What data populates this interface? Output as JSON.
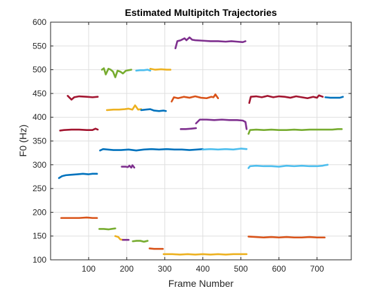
{
  "chart_data": {
    "type": "line",
    "title": "Estimated Multipitch Trajectories",
    "xlabel": "Frame Number",
    "ylabel": "F0 (Hz)",
    "xlim": [
      0,
      790
    ],
    "ylim": [
      100,
      600
    ],
    "xticks": [
      100,
      200,
      300,
      400,
      500,
      600,
      700
    ],
    "yticks": [
      100,
      150,
      200,
      250,
      300,
      350,
      400,
      450,
      500,
      550,
      600
    ],
    "grid": true,
    "legend": false,
    "series": [
      {
        "color": "#0072BD",
        "points": [
          [
            22,
            272
          ],
          [
            30,
            276
          ],
          [
            40,
            278
          ],
          [
            55,
            279
          ],
          [
            70,
            280
          ],
          [
            85,
            281
          ],
          [
            100,
            280
          ],
          [
            110,
            281
          ],
          [
            122,
            281
          ]
        ]
      },
      {
        "color": "#D95319",
        "points": [
          [
            28,
            188
          ],
          [
            50,
            188
          ],
          [
            75,
            188
          ],
          [
            95,
            189
          ],
          [
            110,
            188
          ],
          [
            122,
            188
          ]
        ]
      },
      {
        "color": "#A2142F",
        "points": [
          [
            25,
            372
          ],
          [
            35,
            373
          ],
          [
            55,
            374
          ],
          [
            75,
            374
          ],
          [
            95,
            373
          ],
          [
            110,
            373
          ],
          [
            118,
            376
          ],
          [
            124,
            374
          ]
        ]
      },
      {
        "color": "#A2142F",
        "points": [
          [
            45,
            445
          ],
          [
            55,
            437
          ],
          [
            62,
            442
          ],
          [
            75,
            444
          ],
          [
            95,
            443
          ],
          [
            110,
            442
          ],
          [
            124,
            443
          ]
        ]
      },
      {
        "color": "#0072BD",
        "points": [
          [
            130,
            330
          ],
          [
            138,
            333
          ],
          [
            150,
            332
          ],
          [
            165,
            331
          ],
          [
            185,
            331
          ],
          [
            205,
            332
          ],
          [
            225,
            330
          ],
          [
            245,
            332
          ],
          [
            265,
            333
          ],
          [
            285,
            332
          ],
          [
            305,
            333
          ],
          [
            325,
            332
          ],
          [
            345,
            332
          ],
          [
            365,
            331
          ],
          [
            385,
            332
          ],
          [
            400,
            333
          ]
        ]
      },
      {
        "color": "#4DBEEE",
        "points": [
          [
            400,
            332
          ],
          [
            420,
            333
          ],
          [
            440,
            332
          ],
          [
            460,
            333
          ],
          [
            480,
            332
          ],
          [
            500,
            334
          ],
          [
            515,
            333
          ]
        ]
      },
      {
        "color": "#77AC30",
        "points": [
          [
            135,
            500
          ],
          [
            140,
            503
          ],
          [
            145,
            490
          ],
          [
            152,
            502
          ],
          [
            158,
            500
          ],
          [
            164,
            496
          ],
          [
            170,
            484
          ],
          [
            176,
            498
          ],
          [
            183,
            496
          ],
          [
            190,
            492
          ],
          [
            198,
            498
          ],
          [
            205,
            499
          ],
          [
            212,
            500
          ]
        ]
      },
      {
        "color": "#EDB120",
        "points": [
          [
            148,
            415
          ],
          [
            165,
            416
          ],
          [
            180,
            416
          ],
          [
            195,
            417
          ],
          [
            205,
            418
          ],
          [
            215,
            416
          ],
          [
            222,
            425
          ],
          [
            230,
            416
          ],
          [
            238,
            417
          ]
        ]
      },
      {
        "color": "#0072BD",
        "points": [
          [
            238,
            415
          ],
          [
            250,
            416
          ],
          [
            262,
            417
          ],
          [
            272,
            414
          ],
          [
            285,
            413
          ],
          [
            297,
            414
          ],
          [
            303,
            413
          ]
        ]
      },
      {
        "color": "#4DBEEE",
        "points": [
          [
            225,
            498
          ],
          [
            235,
            499
          ],
          [
            245,
            499
          ],
          [
            255,
            500
          ],
          [
            262,
            498
          ]
        ]
      },
      {
        "color": "#EDB120",
        "points": [
          [
            262,
            502
          ],
          [
            275,
            500
          ],
          [
            290,
            501
          ],
          [
            305,
            500
          ],
          [
            315,
            500
          ]
        ]
      },
      {
        "color": "#7E2F8E",
        "points": [
          [
            328,
            545
          ],
          [
            333,
            560
          ],
          [
            342,
            562
          ],
          [
            352,
            566
          ],
          [
            357,
            562
          ],
          [
            365,
            568
          ],
          [
            372,
            563
          ],
          [
            380,
            562
          ],
          [
            400,
            561
          ],
          [
            420,
            560
          ],
          [
            440,
            560
          ],
          [
            460,
            559
          ],
          [
            475,
            560
          ],
          [
            490,
            559
          ],
          [
            505,
            558
          ],
          [
            512,
            560
          ]
        ]
      },
      {
        "color": "#D95319",
        "points": [
          [
            318,
            433
          ],
          [
            324,
            442
          ],
          [
            335,
            440
          ],
          [
            350,
            443
          ],
          [
            365,
            441
          ],
          [
            380,
            444
          ],
          [
            395,
            441
          ],
          [
            410,
            440
          ],
          [
            422,
            443
          ],
          [
            428,
            442
          ],
          [
            433,
            448
          ],
          [
            440,
            440
          ]
        ]
      },
      {
        "color": "#A2142F",
        "points": [
          [
            522,
            430
          ],
          [
            526,
            443
          ],
          [
            540,
            444
          ],
          [
            555,
            442
          ],
          [
            570,
            445
          ],
          [
            585,
            442
          ],
          [
            600,
            444
          ],
          [
            615,
            443
          ],
          [
            630,
            441
          ],
          [
            645,
            444
          ],
          [
            660,
            442
          ],
          [
            675,
            440
          ],
          [
            690,
            443
          ],
          [
            700,
            441
          ],
          [
            705,
            446
          ],
          [
            715,
            443
          ]
        ]
      },
      {
        "color": "#0072BD",
        "points": [
          [
            722,
            442
          ],
          [
            735,
            441
          ],
          [
            748,
            441
          ],
          [
            760,
            441
          ],
          [
            768,
            443
          ]
        ]
      },
      {
        "color": "#7E2F8E",
        "points": [
          [
            342,
            375
          ],
          [
            355,
            375
          ],
          [
            370,
            376
          ],
          [
            382,
            377
          ]
        ]
      },
      {
        "color": "#7E2F8E",
        "points": [
          [
            382,
            387
          ],
          [
            392,
            395
          ],
          [
            410,
            395
          ],
          [
            430,
            394
          ],
          [
            450,
            395
          ],
          [
            470,
            394
          ],
          [
            490,
            394
          ],
          [
            505,
            393
          ],
          [
            512,
            390
          ],
          [
            515,
            375
          ]
        ]
      },
      {
        "color": "#77AC30",
        "points": [
          [
            520,
            365
          ],
          [
            524,
            373
          ],
          [
            540,
            374
          ],
          [
            560,
            373
          ],
          [
            580,
            374
          ],
          [
            600,
            373
          ],
          [
            620,
            373
          ],
          [
            640,
            374
          ],
          [
            660,
            373
          ],
          [
            680,
            374
          ],
          [
            700,
            374
          ],
          [
            720,
            374
          ],
          [
            740,
            374
          ],
          [
            755,
            375
          ],
          [
            765,
            375
          ]
        ]
      },
      {
        "color": "#4DBEEE",
        "points": [
          [
            520,
            293
          ],
          [
            524,
            297
          ],
          [
            540,
            298
          ],
          [
            560,
            297
          ],
          [
            580,
            297
          ],
          [
            600,
            296
          ],
          [
            620,
            298
          ],
          [
            640,
            297
          ],
          [
            660,
            298
          ],
          [
            680,
            297
          ],
          [
            700,
            297
          ],
          [
            715,
            298
          ],
          [
            720,
            299
          ],
          [
            728,
            300
          ]
        ]
      },
      {
        "color": "#7E2F8E",
        "points": [
          [
            187,
            296
          ],
          [
            197,
            296
          ],
          [
            203,
            295
          ],
          [
            207,
            298
          ],
          [
            212,
            294
          ],
          [
            215,
            299
          ],
          [
            220,
            294
          ]
        ]
      },
      {
        "color": "#D95319",
        "points": [
          [
            520,
            149
          ],
          [
            540,
            148
          ],
          [
            560,
            147
          ],
          [
            580,
            148
          ],
          [
            600,
            147
          ],
          [
            620,
            148
          ],
          [
            640,
            147
          ],
          [
            660,
            147
          ],
          [
            680,
            148
          ],
          [
            700,
            147
          ],
          [
            720,
            147
          ]
        ]
      },
      {
        "color": "#77AC30",
        "points": [
          [
            128,
            165
          ],
          [
            140,
            165
          ],
          [
            152,
            164
          ],
          [
            160,
            165
          ],
          [
            170,
            166
          ]
        ]
      },
      {
        "color": "#EDB120",
        "points": [
          [
            170,
            150
          ],
          [
            178,
            148
          ],
          [
            183,
            143
          ],
          [
            190,
            142
          ]
        ]
      },
      {
        "color": "#7E2F8E",
        "points": [
          [
            190,
            142
          ],
          [
            198,
            142
          ],
          [
            205,
            142
          ]
        ]
      },
      {
        "color": "#77AC30",
        "points": [
          [
            216,
            139
          ],
          [
            226,
            140
          ],
          [
            236,
            140
          ],
          [
            245,
            138
          ],
          [
            255,
            140
          ]
        ]
      },
      {
        "color": "#D95319",
        "points": [
          [
            260,
            124
          ],
          [
            272,
            123
          ],
          [
            282,
            123
          ],
          [
            295,
            123
          ]
        ]
      },
      {
        "color": "#EDB120",
        "points": [
          [
            297,
            112
          ],
          [
            320,
            112
          ],
          [
            340,
            111
          ],
          [
            360,
            112
          ],
          [
            380,
            111
          ],
          [
            400,
            112
          ],
          [
            420,
            111
          ],
          [
            440,
            112
          ],
          [
            460,
            111
          ],
          [
            480,
            112
          ],
          [
            500,
            112
          ],
          [
            515,
            112
          ]
        ]
      }
    ]
  }
}
